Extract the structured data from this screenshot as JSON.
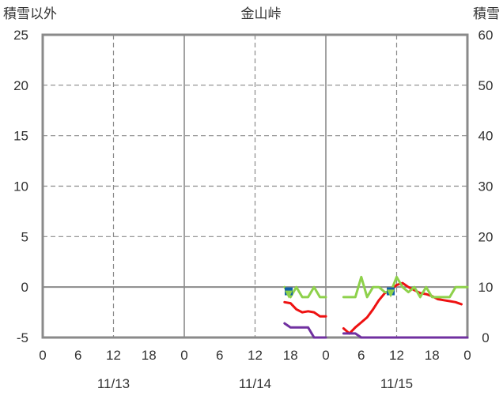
{
  "chart_data": {
    "type": "line",
    "title": "金山峠",
    "ylabel_left": "積雪以外",
    "ylabel_right": "積雪",
    "ylim_left": [
      -5,
      25
    ],
    "ylim_right": [
      0,
      60
    ],
    "yticks_left": [
      "25",
      "20",
      "15",
      "10",
      "5",
      "0",
      "-5"
    ],
    "yticks_right": [
      "60",
      "50",
      "40",
      "30",
      "20",
      "10",
      "0"
    ],
    "xlim_hours": [
      0,
      72
    ],
    "xticks": [
      "0",
      "6",
      "12",
      "18",
      "0",
      "6",
      "12",
      "18",
      "0",
      "6",
      "12",
      "18",
      "0"
    ],
    "dates": [
      "11/13",
      "11/14",
      "11/15"
    ],
    "grid": true,
    "series": [
      {
        "color": "#ee1111",
        "axis": "left",
        "segments": [
          [
            [
              41,
              -1.5
            ],
            [
              42,
              -1.6
            ],
            [
              43,
              -2.2
            ],
            [
              44,
              -2.5
            ],
            [
              45,
              -2.4
            ],
            [
              46,
              -2.5
            ],
            [
              47,
              -2.9
            ],
            [
              48,
              -2.9
            ]
          ],
          [
            [
              51,
              -4.1
            ],
            [
              52,
              -4.6
            ],
            [
              53,
              -4.0
            ],
            [
              54,
              -3.5
            ],
            [
              55,
              -3.0
            ],
            [
              56,
              -2.2
            ],
            [
              57,
              -1.3
            ],
            [
              58,
              -0.6
            ],
            [
              59,
              -0.3
            ],
            [
              60,
              0.2
            ],
            [
              61,
              0.4
            ],
            [
              62,
              0.0
            ],
            [
              63,
              -0.3
            ],
            [
              64,
              -0.6
            ],
            [
              65,
              -0.7
            ],
            [
              66,
              -0.9
            ],
            [
              67,
              -1.2
            ],
            [
              68,
              -1.3
            ],
            [
              69,
              -1.4
            ],
            [
              70,
              -1.5
            ],
            [
              71,
              -1.7
            ]
          ]
        ]
      },
      {
        "color": "#8ed14b",
        "axis": "left",
        "segments": [
          [
            [
              41,
              0.0
            ],
            [
              42,
              -1.0
            ],
            [
              43,
              0.0
            ],
            [
              44,
              -1.0
            ],
            [
              45,
              -1.0
            ],
            [
              46,
              0.0
            ],
            [
              47,
              -1.0
            ],
            [
              48,
              -1.0
            ]
          ],
          [
            [
              51,
              -1.0
            ],
            [
              52,
              -1.0
            ],
            [
              53,
              -1.0
            ],
            [
              54,
              1.0
            ],
            [
              55,
              -1.0
            ],
            [
              56,
              0.0
            ],
            [
              57,
              0.0
            ],
            [
              58,
              -0.5
            ],
            [
              59,
              -0.5
            ],
            [
              60,
              1.0
            ],
            [
              61,
              0.0
            ],
            [
              62,
              -0.5
            ],
            [
              63,
              0.0
            ],
            [
              64,
              -1.0
            ],
            [
              65,
              0.0
            ],
            [
              66,
              -1.0
            ],
            [
              67,
              -1.0
            ],
            [
              68,
              -1.0
            ],
            [
              69,
              -1.0
            ],
            [
              70,
              0.0
            ],
            [
              71,
              0.0
            ],
            [
              72,
              0.0
            ]
          ]
        ]
      },
      {
        "color": "#7030a0",
        "axis": "left",
        "segments": [
          [
            [
              41,
              -3.6
            ],
            [
              42,
              -4.0
            ],
            [
              43,
              -4.0
            ],
            [
              44,
              -4.0
            ],
            [
              45,
              -4.0
            ],
            [
              46,
              -5.0
            ],
            [
              47,
              -5.0
            ],
            [
              48,
              -5.0
            ]
          ],
          [
            [
              51,
              -4.6
            ],
            [
              52,
              -4.6
            ],
            [
              53,
              -4.6
            ],
            [
              54,
              -5.0
            ],
            [
              55,
              -5.0
            ],
            [
              56,
              -5.0
            ],
            [
              57,
              -5.0
            ],
            [
              58,
              -5.0
            ],
            [
              59,
              -5.0
            ],
            [
              60,
              -5.0
            ],
            [
              61,
              -5.0
            ],
            [
              62,
              -5.0
            ],
            [
              63,
              -5.0
            ],
            [
              64,
              -5.0
            ],
            [
              65,
              -5.0
            ],
            [
              66,
              -5.0
            ],
            [
              67,
              -5.0
            ],
            [
              68,
              -5.0
            ],
            [
              69,
              -5.0
            ],
            [
              70,
              -5.0
            ],
            [
              71,
              -5.0
            ],
            [
              72,
              -5.0
            ]
          ]
        ]
      }
    ],
    "markers": [
      {
        "shape": "square",
        "color": "#1060a8",
        "axis": "left",
        "x": 41.7,
        "y": -0.5
      },
      {
        "shape": "triangle",
        "color": "#8ed14b",
        "axis": "left",
        "x": 41.7,
        "y": -0.9
      },
      {
        "shape": "square",
        "color": "#1060a8",
        "axis": "left",
        "x": 59.0,
        "y": -0.5
      },
      {
        "shape": "triangle",
        "color": "#8ed14b",
        "axis": "left",
        "x": 59.0,
        "y": -0.8
      }
    ]
  }
}
